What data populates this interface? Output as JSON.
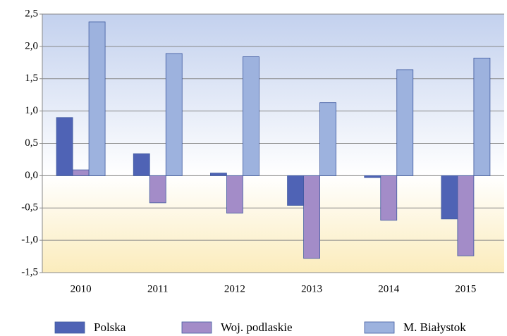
{
  "chart_data": {
    "type": "bar",
    "categories": [
      "2010",
      "2011",
      "2012",
      "2013",
      "2014",
      "2015"
    ],
    "series": [
      {
        "name": "Polska",
        "color": "#4f63b5",
        "values": [
          0.9,
          0.34,
          0.04,
          -0.46,
          -0.03,
          -0.67
        ]
      },
      {
        "name": "Woj. podlaskie",
        "color": "#a38cc8",
        "values": [
          0.09,
          -0.42,
          -0.58,
          -1.28,
          -0.69,
          -1.24
        ]
      },
      {
        "name": "M. Białystok",
        "color": "#9db2de",
        "values": [
          2.38,
          1.89,
          1.84,
          1.13,
          1.64,
          1.82
        ]
      }
    ],
    "ylim": [
      -1.5,
      2.5
    ],
    "yticks": [
      {
        "value": -1.5,
        "label": "-1,5"
      },
      {
        "value": -1,
        "label": "-1,0"
      },
      {
        "value": -0.5,
        "label": "-0,5"
      },
      {
        "value": 0,
        "label": "0,0"
      },
      {
        "value": 0.5,
        "label": "0,5"
      },
      {
        "value": 1,
        "label": "1,0"
      },
      {
        "value": 1.5,
        "label": "1,5"
      },
      {
        "value": 2,
        "label": "2,0"
      },
      {
        "value": 2.5,
        "label": "2,5"
      }
    ],
    "grid": true,
    "legend": "bottom"
  }
}
